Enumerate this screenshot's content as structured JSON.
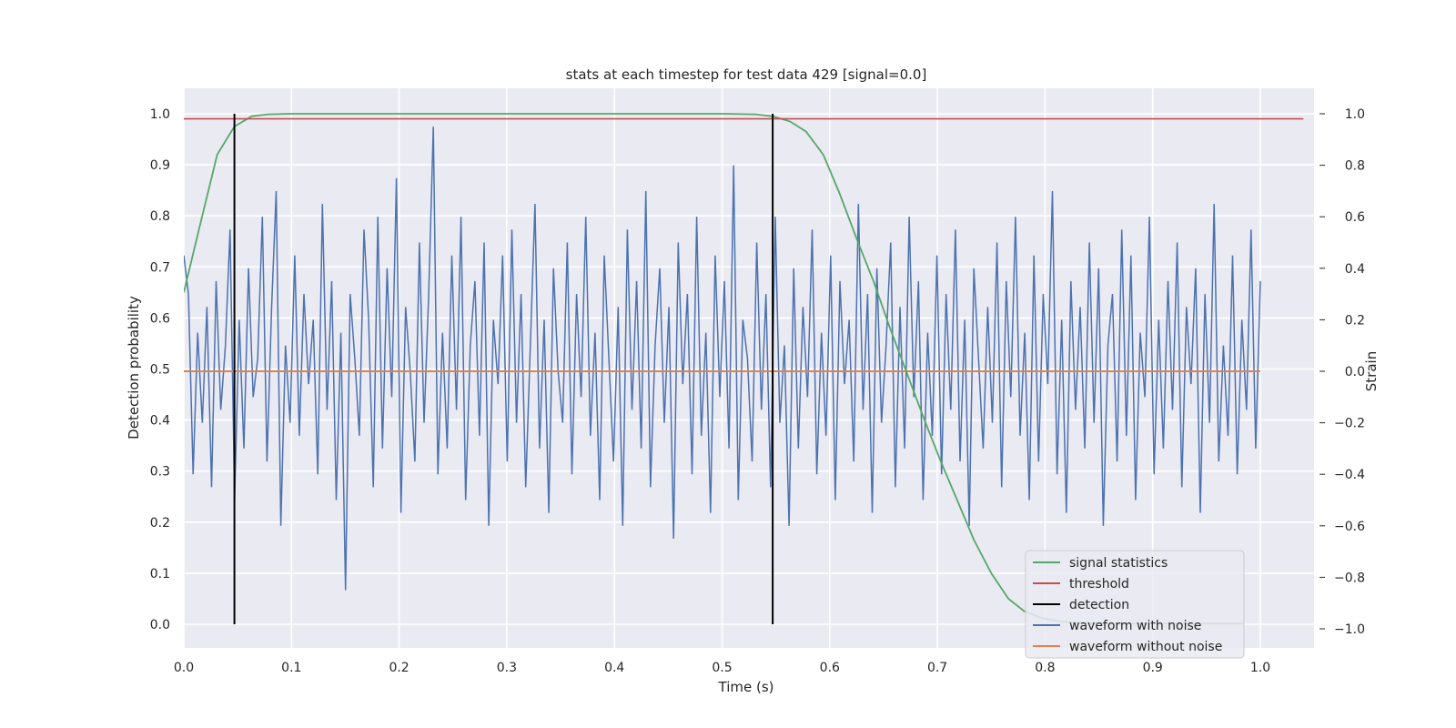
{
  "chart_data": {
    "type": "line",
    "title": "stats at each timestep for test data 429 [signal=0.0]",
    "xlabel": "Time (s)",
    "ylabel_left": "Detection probability",
    "ylabel_right": "Strain",
    "xlim": [
      0.0,
      1.05
    ],
    "ylim_left": [
      -0.05,
      1.05
    ],
    "ylim_right": [
      -1.08,
      1.08
    ],
    "xticks": [
      0.0,
      0.1,
      0.2,
      0.3,
      0.4,
      0.5,
      0.6,
      0.7,
      0.8,
      0.9,
      1.0
    ],
    "xtick_labels": [
      "0.0",
      "0.1",
      "0.2",
      "0.3",
      "0.4",
      "0.5",
      "0.6",
      "0.7",
      "0.8",
      "0.9",
      "1.0"
    ],
    "yticks_left": [
      0.0,
      0.1,
      0.2,
      0.3,
      0.4,
      0.5,
      0.6,
      0.7,
      0.8,
      0.9,
      1.0
    ],
    "ytick_labels_left": [
      "0.0",
      "0.1",
      "0.2",
      "0.3",
      "0.4",
      "0.5",
      "0.6",
      "0.7",
      "0.8",
      "0.9",
      "1.0"
    ],
    "yticks_right": [
      -1.0,
      -0.8,
      -0.6,
      -0.4,
      -0.2,
      0.0,
      0.2,
      0.4,
      0.6,
      0.8,
      1.0
    ],
    "ytick_labels_right": [
      "−1.0",
      "−0.8",
      "−0.6",
      "−0.4",
      "−0.2",
      "0.0",
      "0.2",
      "0.4",
      "0.6",
      "0.8",
      "1.0"
    ],
    "grid": true,
    "legend_position": "lower-right",
    "background_color": "#eaeaf2",
    "grid_color": "#ffffff",
    "series": [
      {
        "name": "signal statistics",
        "axis": "left",
        "color": "#55a868",
        "x": [
          0.0,
          0.016,
          0.031,
          0.047,
          0.063,
          0.078,
          0.1,
          0.2,
          0.3,
          0.4,
          0.5,
          0.531,
          0.547,
          0.563,
          0.578,
          0.594,
          0.609,
          0.625,
          0.641,
          0.656,
          0.672,
          0.688,
          0.703,
          0.719,
          0.734,
          0.75,
          0.766,
          0.781,
          0.797,
          0.813,
          0.828,
          0.844,
          0.859,
          0.875,
          0.891,
          0.906,
          0.922,
          0.938,
          0.953,
          0.969,
          0.984
        ],
        "y": [
          0.65,
          0.79,
          0.92,
          0.975,
          0.995,
          0.999,
          1.0,
          1.0,
          1.0,
          1.0,
          1.0,
          0.999,
          0.995,
          0.985,
          0.965,
          0.92,
          0.845,
          0.755,
          0.67,
          0.58,
          0.49,
          0.4,
          0.32,
          0.24,
          0.165,
          0.1,
          0.05,
          0.025,
          0.012,
          0.006,
          0.003,
          0.002,
          0.001,
          0.001,
          0.001,
          0.001,
          0.001,
          0.001,
          0.001,
          0.001,
          0.001
        ]
      },
      {
        "name": "threshold",
        "axis": "left",
        "color": "#c44e52",
        "x": [
          0.0,
          1.04
        ],
        "y": [
          0.99,
          0.99
        ]
      },
      {
        "name": "detection",
        "axis": "left",
        "color": "#000000",
        "x": [
          0.047,
          0.547
        ],
        "y_range": [
          0.0,
          1.0
        ]
      },
      {
        "name": "waveform with noise",
        "axis": "right",
        "color": "#4c72b0",
        "x_range": [
          0.0,
          1.0
        ],
        "y": [
          0.45,
          0.3,
          -0.4,
          0.15,
          -0.2,
          0.25,
          -0.45,
          0.35,
          -0.15,
          0.1,
          0.55,
          -0.5,
          0.2,
          -0.3,
          0.4,
          -0.1,
          0.05,
          0.6,
          -0.35,
          0.25,
          0.7,
          -0.6,
          0.1,
          -0.2,
          0.45,
          -0.25,
          0.3,
          -0.05,
          0.2,
          -0.4,
          0.65,
          -0.15,
          0.35,
          -0.5,
          0.15,
          -0.85,
          0.3,
          0.05,
          -0.25,
          0.55,
          0.2,
          -0.45,
          0.6,
          -0.3,
          0.4,
          -0.1,
          0.75,
          -0.55,
          0.25,
          0.0,
          -0.35,
          0.5,
          -0.2,
          0.3,
          0.95,
          -0.4,
          0.15,
          -0.3,
          0.45,
          -0.15,
          0.6,
          -0.5,
          0.1,
          0.35,
          -0.25,
          0.5,
          -0.6,
          0.2,
          -0.05,
          0.45,
          -0.35,
          0.55,
          -0.2,
          0.3,
          -0.45,
          0.1,
          0.65,
          -0.3,
          0.2,
          -0.55,
          0.4,
          0.0,
          -0.2,
          0.5,
          -0.4,
          0.3,
          -0.1,
          0.6,
          -0.25,
          0.15,
          -0.5,
          0.45,
          0.05,
          -0.35,
          0.25,
          -0.6,
          0.55,
          -0.15,
          0.35,
          -0.3,
          0.7,
          -0.45,
          0.1,
          0.4,
          -0.2,
          0.25,
          -0.65,
          0.5,
          -0.05,
          0.3,
          -0.4,
          0.6,
          -0.25,
          0.15,
          -0.55,
          0.45,
          -0.1,
          0.35,
          -0.3,
          0.8,
          -0.5,
          0.2,
          0.05,
          -0.35,
          0.5,
          -0.15,
          0.3,
          -0.45,
          0.6,
          -0.2,
          0.1,
          -0.6,
          0.4,
          -0.3,
          0.25,
          -0.1,
          0.55,
          -0.4,
          0.15,
          -0.25,
          0.45,
          -0.5,
          0.35,
          -0.05,
          0.2,
          -0.35,
          0.65,
          -0.15,
          0.3,
          -0.55,
          0.4,
          -0.2,
          0.1,
          0.5,
          -0.45,
          0.25,
          -0.3,
          0.6,
          -0.1,
          0.35,
          -0.5,
          0.15,
          -0.25,
          0.45,
          -0.4,
          0.3,
          -0.15,
          0.55,
          -0.35,
          0.2,
          -0.6,
          0.4,
          0.05,
          -0.3,
          0.25,
          -0.2,
          0.5,
          -0.45,
          0.35,
          -0.1,
          0.6,
          -0.25,
          0.15,
          -0.5,
          0.45,
          -0.35,
          0.3,
          -0.05,
          0.7,
          -0.4,
          0.2,
          -0.55,
          0.35,
          -0.15,
          0.25,
          -0.3,
          0.5,
          -0.2,
          0.4,
          -0.6,
          0.1,
          0.3,
          -0.35,
          0.55,
          -0.25,
          0.45,
          -0.5,
          0.15,
          -0.1,
          0.6,
          -0.4,
          0.2,
          -0.3,
          0.35,
          -0.15,
          0.5,
          -0.45,
          0.25,
          -0.05,
          0.4,
          -0.55,
          0.3,
          -0.2,
          0.65,
          -0.35,
          0.1,
          -0.25,
          0.45,
          -0.4,
          0.2,
          -0.15,
          0.55,
          -0.3,
          0.35
        ],
        "y_min": -1.0,
        "y_max": 1.0
      },
      {
        "name": "waveform without noise",
        "axis": "right",
        "color": "#dd8452",
        "x": [
          0.0,
          1.0
        ],
        "y": [
          0.0,
          0.0
        ]
      }
    ]
  }
}
